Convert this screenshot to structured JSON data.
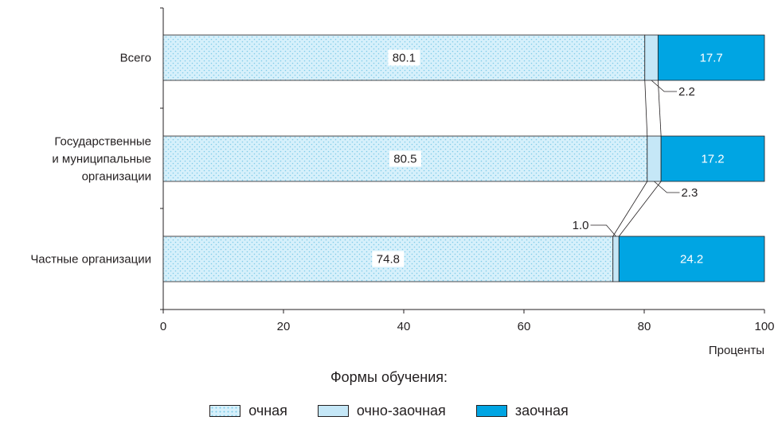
{
  "chart_data": {
    "type": "bar",
    "orientation": "horizontal",
    "stacked": true,
    "categories": [
      [
        "Всего"
      ],
      [
        "Государственные",
        "и муниципальные",
        "организации"
      ],
      [
        "Частные организации"
      ]
    ],
    "series": [
      {
        "name": "очная",
        "values": [
          80.1,
          80.5,
          74.8
        ],
        "labels": [
          "80.1",
          "80.5",
          "74.8"
        ],
        "color": "#d6f0fb",
        "pattern": "dots",
        "label_position": "inside"
      },
      {
        "name": "очно-заочная",
        "values": [
          2.2,
          2.3,
          1.0
        ],
        "labels": [
          "2.2",
          "2.3",
          "1.0"
        ],
        "color": "#c5e7f7",
        "label_position": "callout"
      },
      {
        "name": "заочная",
        "values": [
          17.7,
          17.2,
          24.2
        ],
        "labels": [
          "17.7",
          "17.2",
          "24.2"
        ],
        "color": "#00a5e3",
        "label_position": "inside"
      }
    ],
    "x_axis": {
      "ticks": [
        0,
        20,
        40,
        60,
        80,
        100
      ],
      "tick_labels": [
        "0",
        "20",
        "40",
        "60",
        "80",
        "100"
      ],
      "label": "Проценты",
      "range": [
        0,
        100
      ]
    },
    "grid": false,
    "legend": {
      "title": "Формы обучения:",
      "position": "bottom"
    }
  }
}
